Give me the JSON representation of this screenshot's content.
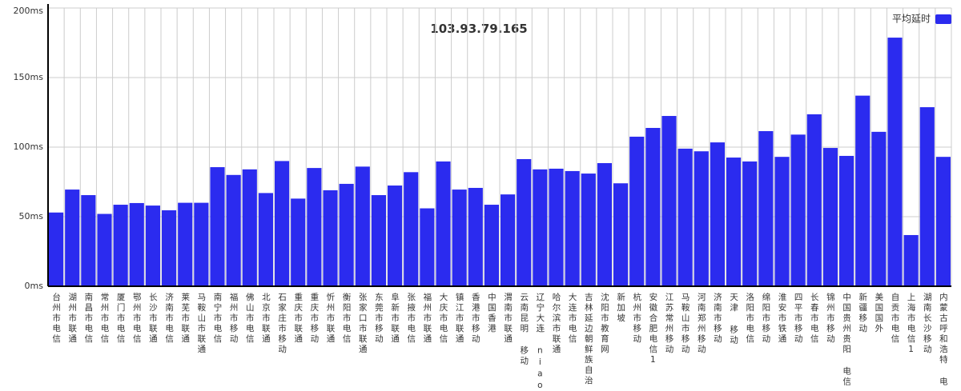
{
  "chart_data": {
    "type": "bar",
    "title": "103.93.79.165",
    "categories": [
      "台州市电信",
      "湖州市联通",
      "南昌市电信",
      "常州市电信",
      "厦门市电信",
      "鄂州市电信",
      "长沙市联通",
      "济南市电信",
      "莱芜市联通",
      "马鞍山市联通",
      "南宁市电信",
      "福州市移动",
      "佛山市电信",
      "北京市联通",
      "石家庄市移动",
      "重庆市联通",
      "重庆市移动",
      "忻州市联通",
      "衡阳市电信",
      "张家口市联通",
      "东莞市移动",
      "阜新市联通",
      "张掖市电信",
      "福州市联通",
      "大庆市电信",
      "镇江市联通",
      "香港市移动",
      "中国香港",
      "渭南市联通",
      "云南昆明 移动",
      "辽宁大连 niao",
      "哈尔滨市联通",
      "大连市电信",
      "吉林延边朝鲜族自治",
      "沈阳市教育网",
      "新加坡",
      "杭州市移动",
      "安徽合肥电信1",
      "江苏常州移动",
      "马鞍山市移动",
      "河南郑州移动",
      "济南市移动",
      "天津 移动",
      "洛阳市电信",
      "绵阳市移动",
      "淮安市铁通",
      "四平市移动",
      "长春市电信",
      "锦州市移动",
      "中国贵州贵阳 电信",
      "新疆移动",
      "美国国外",
      "自贡市电信",
      "上海市电信1",
      "湖南长沙移动",
      "内蒙古呼和浩特 电"
    ],
    "series": [
      {
        "name": "平均延时",
        "color": "#2b2bef",
        "values": [
          53,
          69.5,
          65.5,
          52,
          58.6,
          59.8,
          58,
          54.6,
          60,
          60,
          85.6,
          80,
          84,
          67,
          90,
          63,
          85,
          69,
          73.6,
          86,
          65.5,
          72.4,
          82,
          56,
          89.7,
          69.5,
          70.7,
          58.6,
          66,
          91.4,
          84,
          84.5,
          82.8,
          81,
          88.5,
          74,
          107.5,
          113.8,
          122.4,
          98.9,
          97,
          103.4,
          92.5,
          89.7,
          111.5,
          93,
          109,
          123.6,
          99.4,
          93.7,
          137,
          111,
          178.7,
          36.8,
          128.7,
          93
        ]
      }
    ],
    "ylim": [
      0,
      200
    ],
    "yticks": [
      {
        "value": 0,
        "label": "0ms"
      },
      {
        "value": 50,
        "label": "50ms"
      },
      {
        "value": 100,
        "label": "100ms"
      },
      {
        "value": 150,
        "label": "150ms"
      },
      {
        "value": 200,
        "label": "200ms"
      }
    ],
    "grid": true,
    "legend": "top-right"
  }
}
